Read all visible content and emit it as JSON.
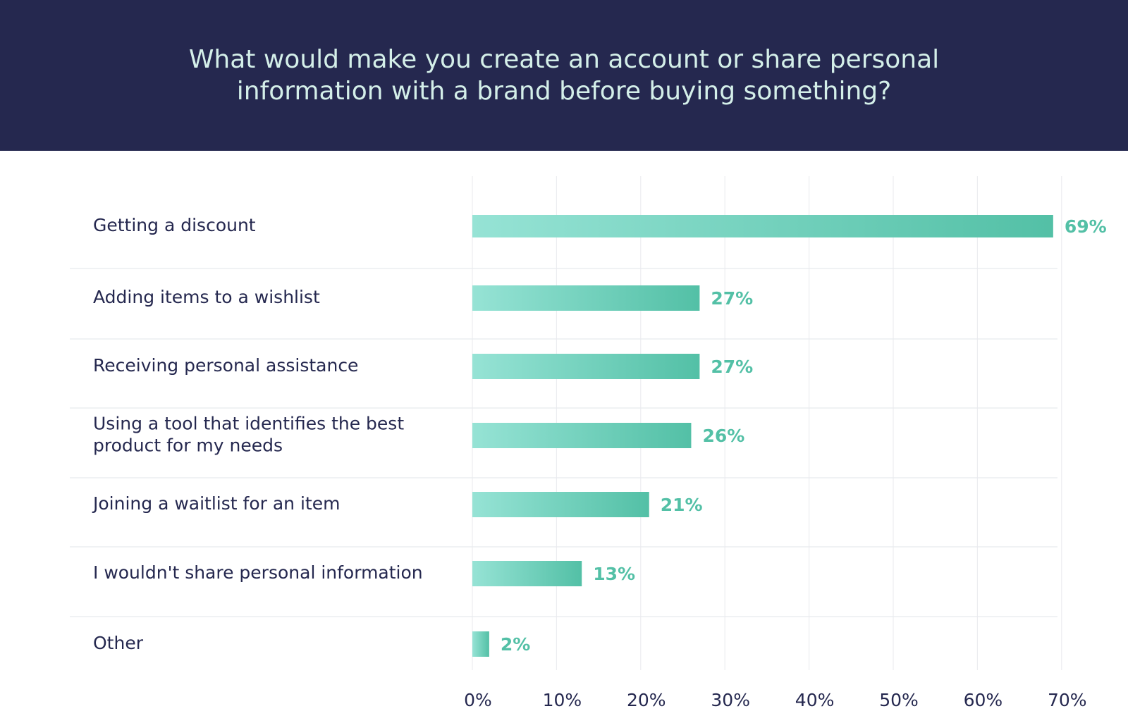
{
  "chart_data": {
    "type": "bar",
    "orientation": "horizontal",
    "title": "What would make you create an account or share personal information with a brand before buying something?",
    "categories": [
      "Getting a discount",
      "Adding items to a wishlist",
      "Receiving personal assistance",
      "Using a tool that identifies the best product for my needs",
      "Joining a waitlist for an item",
      "I wouldn't share personal information",
      "Other"
    ],
    "values": [
      69,
      27,
      27,
      26,
      21,
      13,
      2
    ],
    "value_labels": [
      "69%",
      "27%",
      "27%",
      "26%",
      "21%",
      "13%",
      "2%"
    ],
    "xlim": [
      0,
      70
    ],
    "x_ticks": [
      0,
      10,
      20,
      30,
      40,
      50,
      60,
      70
    ],
    "x_tick_labels": [
      "0%",
      "10%",
      "20%",
      "30%",
      "40%",
      "50%",
      "60%",
      "70%"
    ],
    "xlabel": "",
    "ylabel": "",
    "grid": true,
    "legend": "none"
  },
  "colors": {
    "banner_bg": "#25284f",
    "title_text": "#d4efe9",
    "label_text": "#25284f",
    "bar_start": "#96e3d5",
    "bar_end": "#53c0a6",
    "value_text": "#53c0a6",
    "grid": "#ecedf0",
    "separator": "#e8e9ee"
  }
}
